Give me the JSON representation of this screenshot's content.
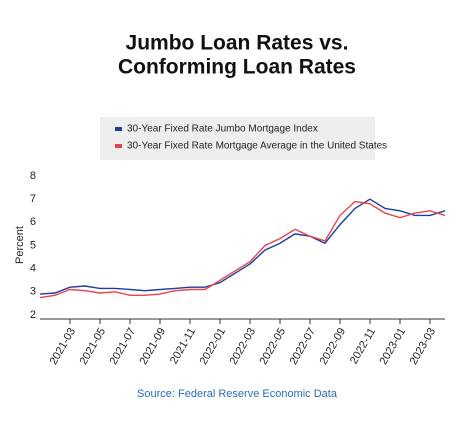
{
  "chart_data": {
    "type": "line",
    "title": [
      "Jumbo Loan Rates vs.",
      "Conforming Loan Rates"
    ],
    "ylabel": "Percent",
    "source": "Source: Federal Reserve Economic Data",
    "x": [
      "2021-01",
      "2021-02",
      "2021-03",
      "2021-04",
      "2021-05",
      "2021-06",
      "2021-07",
      "2021-08",
      "2021-09",
      "2021-10",
      "2021-11",
      "2021-12",
      "2022-01",
      "2022-02",
      "2022-03",
      "2022-04",
      "2022-05",
      "2022-06",
      "2022-07",
      "2022-08",
      "2022-09",
      "2022-10",
      "2022-11",
      "2022-12",
      "2023-01",
      "2023-02",
      "2023-03",
      "2023-04"
    ],
    "series": [
      {
        "name": "30-Year Fixed Rate Jumbo Mortgage Index",
        "color": "#1f3e9e",
        "values": [
          2.9,
          2.95,
          3.2,
          3.25,
          3.15,
          3.15,
          3.1,
          3.05,
          3.1,
          3.15,
          3.2,
          3.2,
          3.4,
          3.8,
          4.2,
          4.8,
          5.1,
          5.5,
          5.4,
          5.1,
          5.9,
          6.6,
          7.0,
          6.6,
          6.5,
          6.3,
          6.3,
          6.5
        ]
      },
      {
        "name": "30-Year Fixed Rate Mortgage Average in the United States",
        "color": "#e8454f",
        "values": [
          2.75,
          2.85,
          3.1,
          3.05,
          2.95,
          3.0,
          2.85,
          2.85,
          2.9,
          3.05,
          3.1,
          3.1,
          3.5,
          3.9,
          4.3,
          5.0,
          5.3,
          5.7,
          5.4,
          5.2,
          6.3,
          6.9,
          6.8,
          6.4,
          6.2,
          6.4,
          6.5,
          6.3
        ]
      }
    ],
    "xlim": [
      "2021-01",
      "2023-04"
    ],
    "xticks": [
      "2021-03",
      "2021-05",
      "2021-07",
      "2021-09",
      "2021-11",
      "2022-01",
      "2022-03",
      "2022-05",
      "2022-07",
      "2022-09",
      "2022-11",
      "2023-01",
      "2023-03"
    ],
    "ylim": [
      2,
      8
    ],
    "yticks": [
      2,
      3,
      4,
      5,
      6,
      7,
      8
    ],
    "legend": "top"
  }
}
